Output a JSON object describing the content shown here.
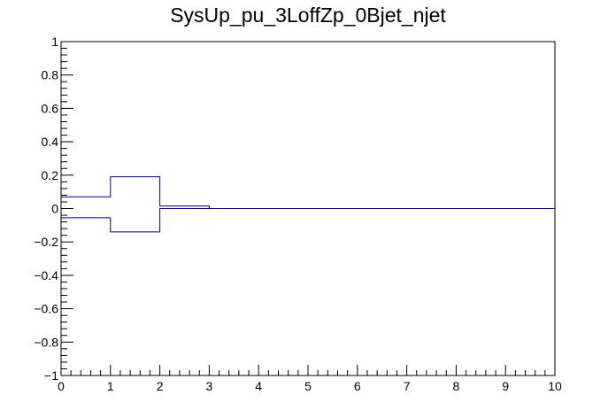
{
  "chart_data": {
    "type": "line",
    "title": "SysUp_pu_3LoffZp_0Bjet_njet",
    "xlabel": "",
    "ylabel": "",
    "xlim": [
      0,
      10
    ],
    "ylim": [
      -1,
      1
    ],
    "x_ticks": [
      "0",
      "1",
      "2",
      "3",
      "4",
      "5",
      "6",
      "7",
      "8",
      "9",
      "10"
    ],
    "y_ticks": [
      "−1",
      "−0.8",
      "−0.6",
      "−0.4",
      "−0.2",
      "0",
      "0.2",
      "0.4",
      "0.6",
      "0.8",
      "1"
    ],
    "grid": false,
    "line_color": "#000080",
    "series": [
      {
        "bins": [
          [
            0,
            1
          ],
          [
            1,
            2
          ],
          [
            2,
            3
          ],
          [
            3,
            4
          ],
          [
            4,
            5
          ],
          [
            5,
            6
          ],
          [
            6,
            7
          ],
          [
            7,
            8
          ],
          [
            8,
            9
          ],
          [
            9,
            10
          ]
        ],
        "values": [
          0.07,
          0.19,
          0.015,
          0,
          0,
          0,
          0,
          0,
          0,
          0
        ]
      },
      {
        "bins": [
          [
            0,
            1
          ],
          [
            1,
            2
          ],
          [
            2,
            3
          ],
          [
            3,
            4
          ],
          [
            4,
            5
          ],
          [
            5,
            6
          ],
          [
            6,
            7
          ],
          [
            7,
            8
          ],
          [
            8,
            9
          ],
          [
            9,
            10
          ]
        ],
        "values": [
          -0.055,
          -0.14,
          0,
          0,
          0,
          0,
          0,
          0,
          0,
          0
        ]
      }
    ]
  }
}
